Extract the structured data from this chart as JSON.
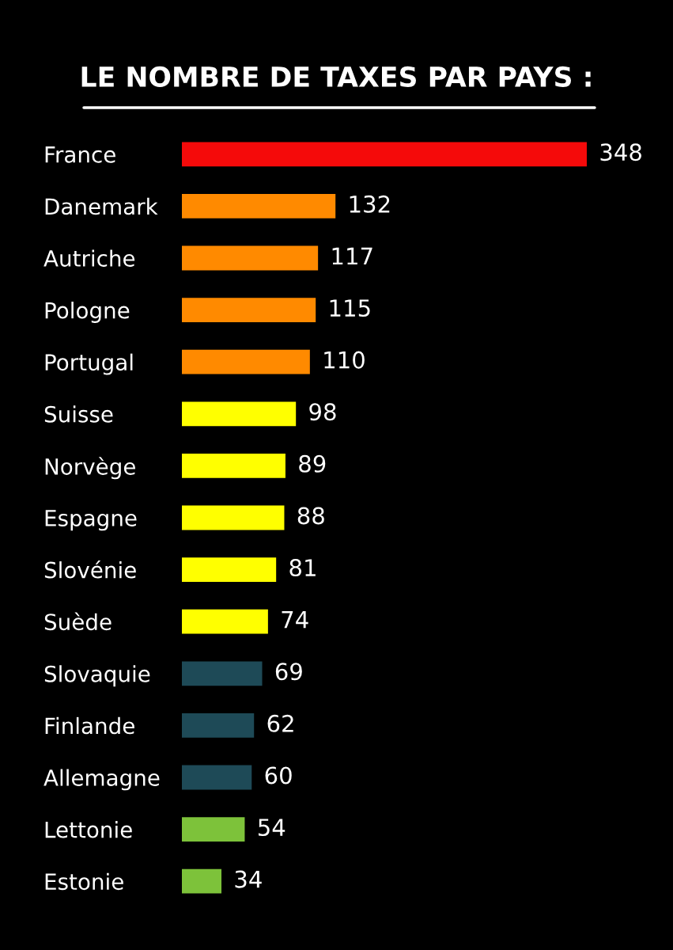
{
  "chart_data": {
    "type": "bar",
    "orientation": "horizontal",
    "title": "LE NOMBRE DE TAXES PAR PAYS :",
    "categories": [
      "France",
      "Danemark",
      "Autriche",
      "Pologne",
      "Portugal",
      "Suisse",
      "Norvège",
      "Espagne",
      "Slovénie",
      "Suède",
      "Slovaquie",
      "Finlande",
      "Allemagne",
      "Lettonie",
      "Estonie"
    ],
    "values": [
      348,
      132,
      117,
      115,
      110,
      98,
      89,
      88,
      81,
      74,
      69,
      62,
      60,
      54,
      34
    ],
    "colors": [
      "#f50a0a",
      "#ff8a00",
      "#ff8a00",
      "#ff8a00",
      "#ff8a00",
      "#ffff00",
      "#ffff00",
      "#ffff00",
      "#ffff00",
      "#ffff00",
      "#1e4a57",
      "#1e4a57",
      "#1e4a57",
      "#7dc23a",
      "#7dc23a"
    ],
    "data_labels": true,
    "tick_labels": "y"
  }
}
